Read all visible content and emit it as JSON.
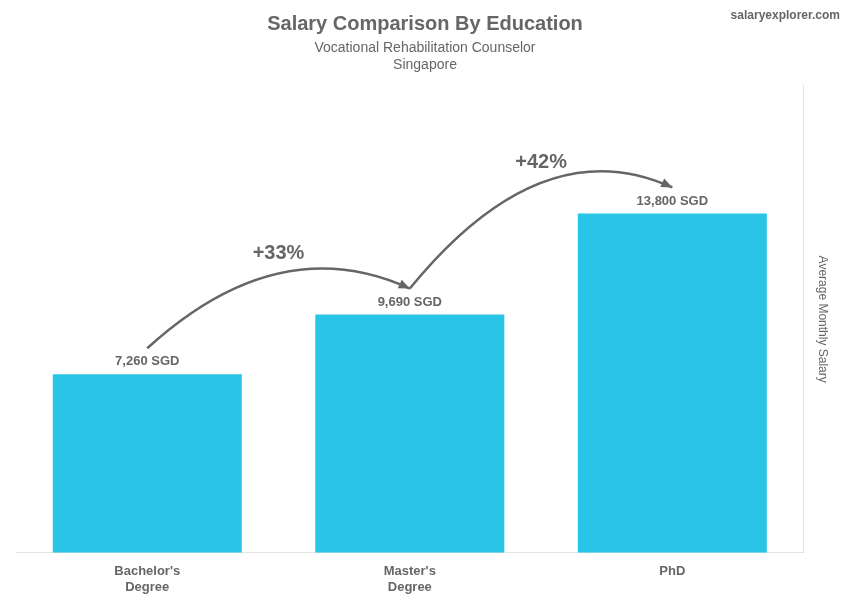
{
  "chart_data": {
    "type": "bar",
    "title": "Salary Comparison By Education",
    "subtitle": "Vocational Rehabilitation Counselor",
    "location": "Singapore",
    "watermark": "salaryexplorer.com",
    "y_label": "Average Monthly Salary",
    "categories": [
      "Bachelor's\nDegree",
      "Master's\nDegree",
      "PhD"
    ],
    "values": [
      7260,
      9690,
      13800
    ],
    "value_labels": [
      "7,260 SGD",
      "9,690 SGD",
      "13,800 SGD"
    ],
    "data_labels": true,
    "annotations": [
      "+33%",
      "+42%"
    ],
    "color": "#29c5e6",
    "ylim": [
      0,
      19000
    ],
    "yticks": [],
    "grid": false,
    "tick_labels": "x"
  }
}
